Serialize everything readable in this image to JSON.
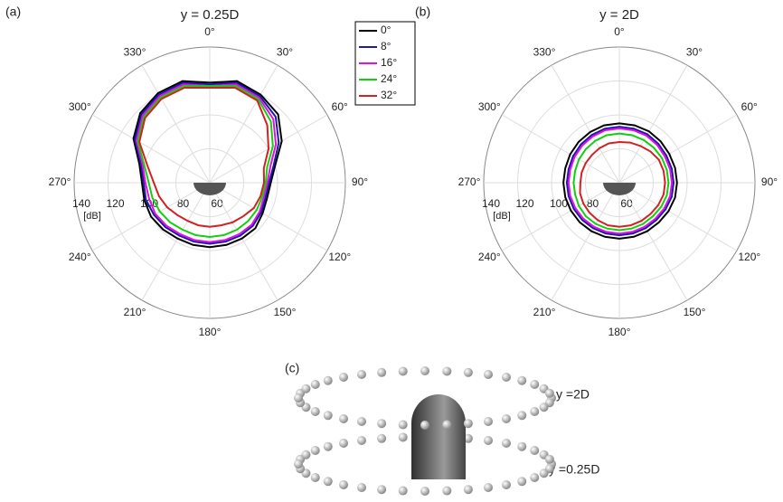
{
  "chart_data": [
    {
      "type": "polar",
      "panel": "(a)",
      "title": "y = 0.25D",
      "r_label": "[dB]",
      "theta": [
        0,
        15,
        30,
        45,
        60,
        75,
        90,
        105,
        120,
        135,
        150,
        165,
        180,
        195,
        210,
        225,
        240,
        255,
        270,
        285,
        300,
        315,
        330,
        345
      ],
      "rlim": [
        60,
        140
      ],
      "rticks": [
        60,
        80,
        100,
        120,
        140
      ],
      "thetaticks": [
        {
          "value": 0,
          "label": "0°"
        },
        {
          "value": 30,
          "label": "30°"
        },
        {
          "value": 60,
          "label": "60°"
        },
        {
          "value": 90,
          "label": "90°"
        },
        {
          "value": 120,
          "label": "120°"
        },
        {
          "value": 150,
          "label": "150°"
        },
        {
          "value": 180,
          "label": "180°"
        },
        {
          "value": 210,
          "label": "210°"
        },
        {
          "value": 240,
          "label": "240°"
        },
        {
          "value": 270,
          "label": "270°"
        },
        {
          "value": 300,
          "label": "300°"
        },
        {
          "value": 330,
          "label": "330°"
        }
      ],
      "legend": "top-right",
      "series": [
        {
          "name": "0°",
          "color": "#000000",
          "values": [
            119,
            122,
            120,
            117,
            109,
            100,
            96,
            95,
            96,
            98,
            98,
            98,
            98,
            98,
            98,
            99,
            100,
            100,
            100,
            103,
            112,
            118,
            121,
            122
          ]
        },
        {
          "name": "8°",
          "color": "#1a1aa8",
          "values": [
            118,
            121,
            119,
            115,
            107,
            99,
            95,
            94,
            95,
            96,
            96,
            96,
            96,
            96,
            96,
            97,
            98,
            99,
            99,
            102,
            111,
            117,
            120,
            121
          ]
        },
        {
          "name": "16°",
          "color": "#e010e0",
          "values": [
            117,
            120,
            118,
            113,
            105,
            97,
            94,
            93,
            94,
            95,
            95,
            95,
            95,
            95,
            95,
            96,
            97,
            97,
            98,
            101,
            110,
            116,
            119,
            120
          ]
        },
        {
          "name": "24°",
          "color": "#10d010",
          "values": [
            117,
            119,
            117,
            111,
            103,
            95,
            93,
            92,
            92,
            92,
            92,
            92,
            92,
            92,
            92,
            93,
            94,
            95,
            96,
            100,
            109,
            115,
            118,
            119
          ]
        },
        {
          "name": "32°",
          "color": "#d42020",
          "values": [
            116,
            118,
            116,
            108,
            100,
            93,
            92,
            91,
            90,
            88,
            87,
            86,
            86,
            86,
            86,
            87,
            89,
            91,
            93,
            98,
            108,
            114,
            117,
            118
          ]
        }
      ]
    },
    {
      "type": "polar",
      "panel": "(b)",
      "title": "y = 2D",
      "r_label": "[dB]",
      "theta": [
        0,
        15,
        30,
        45,
        60,
        75,
        90,
        105,
        120,
        135,
        150,
        165,
        180,
        195,
        210,
        225,
        240,
        255,
        270,
        285,
        300,
        315,
        330,
        345
      ],
      "rlim": [
        60,
        140
      ],
      "rticks": [
        60,
        80,
        100,
        120,
        140
      ],
      "thetaticks": [
        {
          "value": 0,
          "label": "0°"
        },
        {
          "value": 30,
          "label": "30°"
        },
        {
          "value": 60,
          "label": "60°"
        },
        {
          "value": 90,
          "label": "90°"
        },
        {
          "value": 120,
          "label": "120°"
        },
        {
          "value": 150,
          "label": "150°"
        },
        {
          "value": 180,
          "label": "180°"
        },
        {
          "value": 210,
          "label": "210°"
        },
        {
          "value": 240,
          "label": "240°"
        },
        {
          "value": 270,
          "label": "270°"
        },
        {
          "value": 300,
          "label": "300°"
        },
        {
          "value": 330,
          "label": "330°"
        }
      ],
      "series": [
        {
          "name": "0°",
          "color": "#000000",
          "values": [
            95,
            95,
            95,
            94.5,
            94,
            94,
            94,
            94,
            93.5,
            93,
            93,
            93,
            93,
            93,
            93,
            93,
            93,
            93,
            93,
            93,
            93.5,
            94,
            94.5,
            95
          ]
        },
        {
          "name": "8°",
          "color": "#1a1aa8",
          "values": [
            93,
            93,
            93,
            92.5,
            92,
            92,
            92,
            92,
            91.5,
            91,
            91,
            91,
            91,
            91,
            91,
            91,
            91,
            91,
            91,
            91,
            91.5,
            92,
            92.5,
            93
          ]
        },
        {
          "name": "16°",
          "color": "#e010e0",
          "values": [
            92,
            92,
            92,
            91.5,
            91,
            91,
            91,
            91,
            90.5,
            90,
            90,
            90,
            90,
            90,
            90,
            90,
            90,
            90,
            90,
            90,
            90.5,
            91,
            91.5,
            92
          ]
        },
        {
          "name": "24°",
          "color": "#10d010",
          "values": [
            89,
            89,
            89,
            89,
            89,
            89,
            89,
            89,
            88.5,
            88,
            88,
            88,
            88,
            88,
            88,
            88,
            87.5,
            87,
            87,
            87,
            87.5,
            88,
            88.5,
            89
          ]
        },
        {
          "name": "32°",
          "color": "#d42020",
          "values": [
            84,
            84.5,
            85,
            86,
            87,
            87,
            87,
            87,
            86.5,
            86,
            86,
            86,
            86,
            86,
            85.5,
            85,
            84.5,
            84,
            83,
            83,
            83,
            83,
            83.5,
            84
          ]
        }
      ]
    }
  ],
  "panel_c": {
    "label": "(c)",
    "upper_ring": "y =2D",
    "lower_ring": "y =0.25D"
  }
}
